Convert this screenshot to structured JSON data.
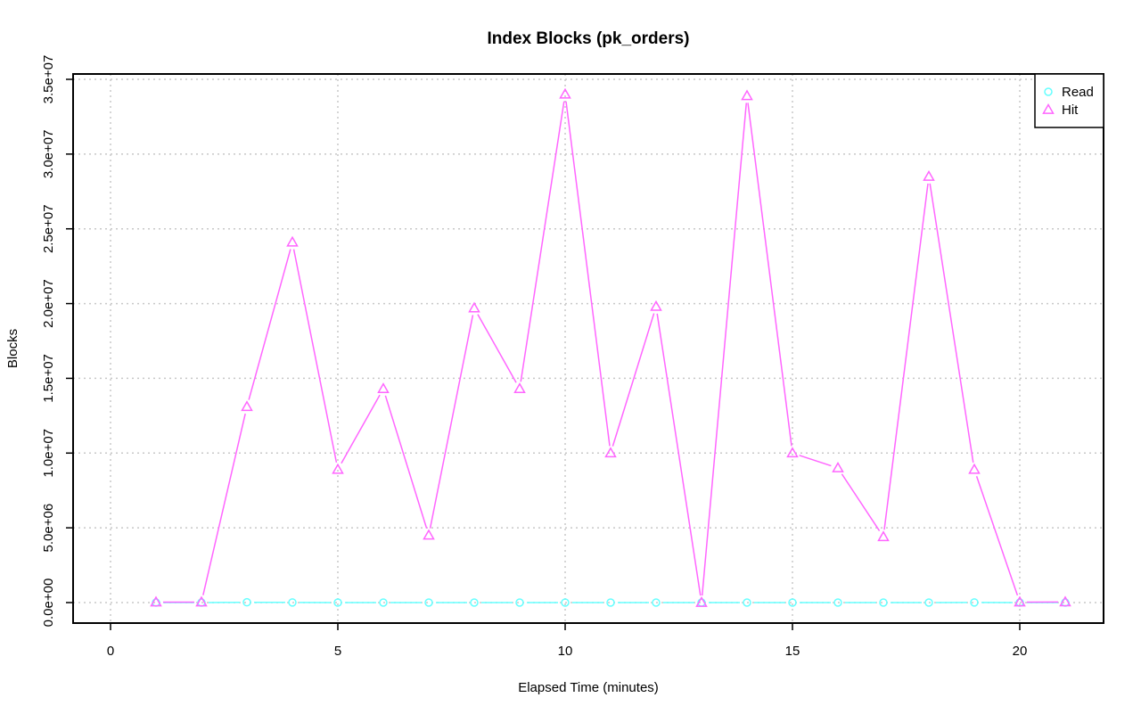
{
  "chart_data": {
    "type": "line",
    "title": "Index Blocks (pk_orders)",
    "xlabel": "Elapsed Time (minutes)",
    "ylabel": "Blocks",
    "xlim": [
      0,
      21
    ],
    "ylim": [
      0,
      35000000
    ],
    "x_ticks": [
      0,
      5,
      10,
      15,
      20
    ],
    "x_tick_labels": [
      "0",
      "5",
      "10",
      "15",
      "20"
    ],
    "y_ticks": [
      0,
      5000000,
      10000000,
      15000000,
      20000000,
      25000000,
      30000000,
      35000000
    ],
    "y_tick_labels": [
      "0.0e+00",
      "5.0e+06",
      "1.0e+07",
      "1.5e+07",
      "2.0e+07",
      "2.5e+07",
      "3.0e+07",
      "3.5e+07"
    ],
    "grid": true,
    "legend_position": "top-right",
    "x": [
      1,
      2,
      3,
      4,
      5,
      6,
      7,
      8,
      9,
      10,
      11,
      12,
      13,
      14,
      15,
      16,
      17,
      18,
      19,
      20,
      21
    ],
    "series": [
      {
        "name": "Read",
        "color": "#66ffff",
        "marker": "circle",
        "values": [
          0,
          0,
          20000,
          10000,
          0,
          0,
          0,
          0,
          0,
          0,
          0,
          0,
          0,
          0,
          0,
          0,
          0,
          0,
          10000,
          0,
          0
        ]
      },
      {
        "name": "Hit",
        "color": "#ff66ff",
        "marker": "triangle",
        "values": [
          30000,
          30000,
          13100000,
          24100000,
          8900000,
          14300000,
          4500000,
          19700000,
          14300000,
          34000000,
          10000000,
          19800000,
          0,
          33900000,
          10000000,
          9000000,
          4400000,
          28500000,
          8900000,
          30000,
          40000
        ]
      }
    ]
  }
}
